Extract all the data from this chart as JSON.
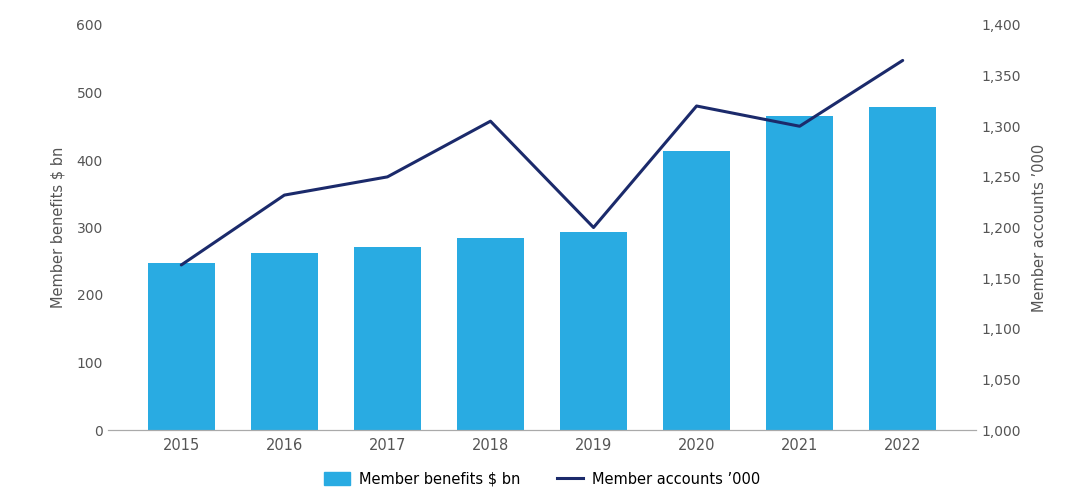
{
  "years": [
    2015,
    2016,
    2017,
    2018,
    2019,
    2020,
    2021,
    2022
  ],
  "member_benefits": [
    247,
    262,
    271,
    284,
    293,
    414,
    465,
    478
  ],
  "member_accounts": [
    1163,
    1232,
    1250,
    1305,
    1200,
    1320,
    1300,
    1365
  ],
  "bar_color": "#29ABE2",
  "line_color": "#1B2A6B",
  "left_ylabel": "Member benefits $ bn",
  "right_ylabel": "Member accounts ’000",
  "left_ylim": [
    0,
    600
  ],
  "left_yticks": [
    0,
    100,
    200,
    300,
    400,
    500,
    600
  ],
  "right_ylim": [
    1000,
    1400
  ],
  "right_yticks": [
    1000,
    1050,
    1100,
    1150,
    1200,
    1250,
    1300,
    1350,
    1400
  ],
  "legend_bar_label": "Member benefits $ bn",
  "legend_line_label": "Member accounts ’000",
  "background_color": "#ffffff",
  "line_width": 2.2,
  "bar_width": 0.65,
  "axis_color": "#aaaaaa",
  "tick_label_color": "#555555",
  "grid_color": "#e0e0e0",
  "ylabel_color": "#555555"
}
